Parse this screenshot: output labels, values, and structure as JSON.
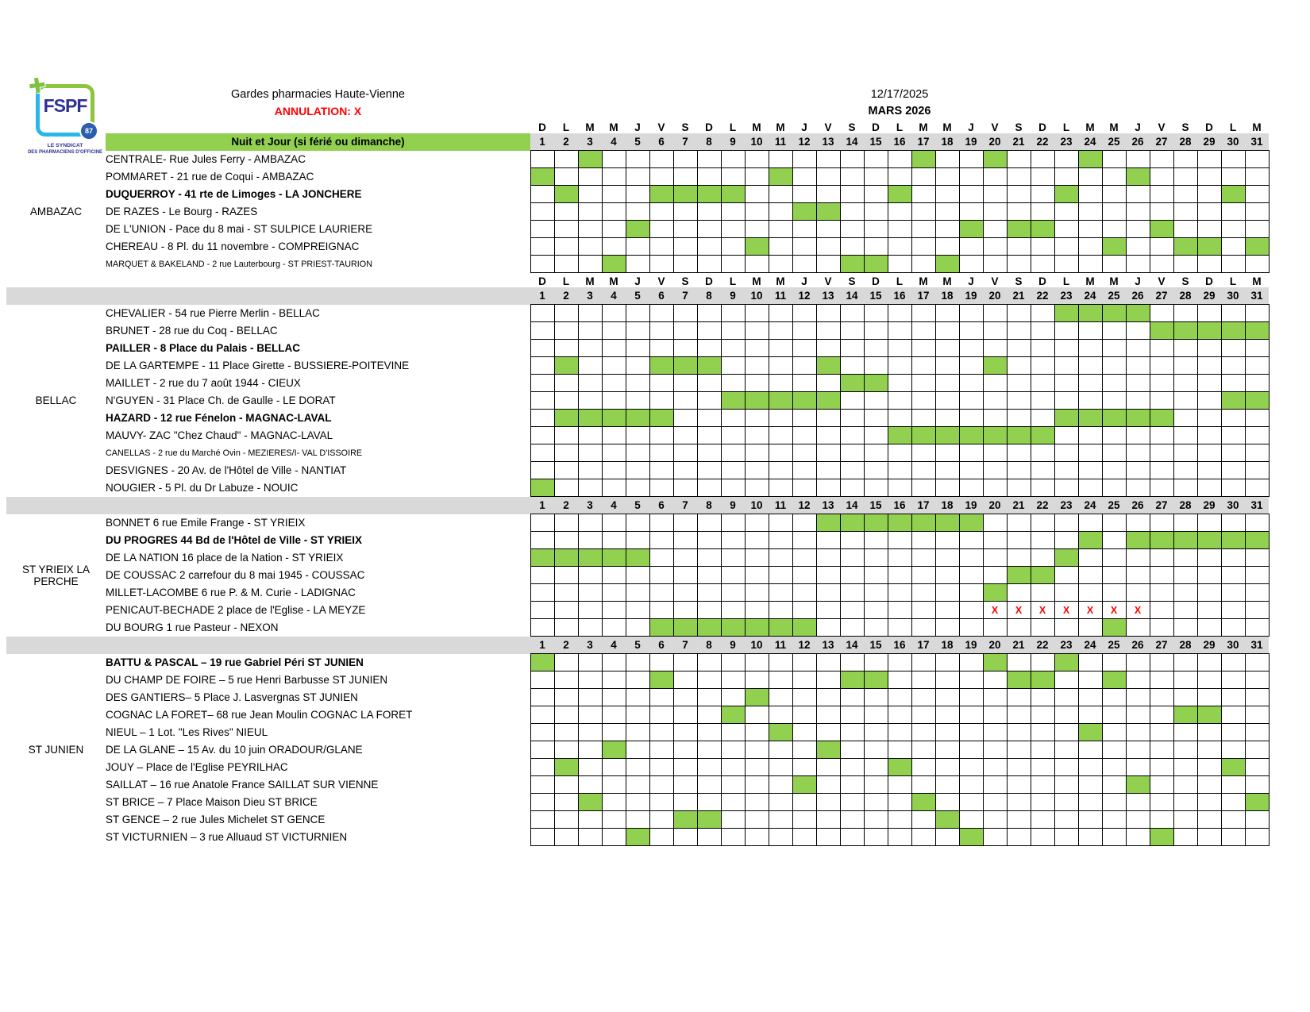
{
  "header": {
    "title": "Gardes pharmacies Haute-Vienne",
    "annulation": "ANNULATION: X",
    "banner": "Nuit et Jour (si férié ou dimanche)",
    "generated_date": "12/17/2025",
    "month": "MARS 2026",
    "logo": {
      "acronym": "FSPF",
      "badge": "87",
      "caption_line1": "LE SYNDICAT",
      "caption_line2": "DES PHARMACIENS D'OFFICINE"
    }
  },
  "symbols": {
    "x": "X"
  },
  "colors": {
    "duty_green": "#92d050",
    "band_gray": "#d9d9d9",
    "cancel_red": "#ff0000"
  },
  "calendar": {
    "day_letters": [
      "D",
      "L",
      "M",
      "M",
      "J",
      "V",
      "S",
      "D",
      "L",
      "M",
      "M",
      "J",
      "V",
      "S",
      "D",
      "L",
      "M",
      "M",
      "J",
      "V",
      "S",
      "D",
      "L",
      "M",
      "M",
      "J",
      "V",
      "S",
      "D",
      "L",
      "M"
    ],
    "dates": [
      1,
      2,
      3,
      4,
      5,
      6,
      7,
      8,
      9,
      10,
      11,
      12,
      13,
      14,
      15,
      16,
      17,
      18,
      19,
      20,
      21,
      22,
      23,
      24,
      25,
      26,
      27,
      28,
      29,
      30,
      31
    ]
  },
  "groups": [
    {
      "name": "AMBAZAC",
      "show_day_letters": true,
      "full_gray_band": false,
      "rows": [
        {
          "label": "CENTRALE- Rue Jules Ferry - AMBAZAC",
          "green": [
            3,
            17,
            20,
            24
          ]
        },
        {
          "label": "POMMARET - 21 rue de Coqui  - AMBAZAC",
          "green": [
            1,
            11,
            26
          ]
        },
        {
          "label": "DUQUERROY - 41 rte de Limoges - LA JONCHERE",
          "bold": true,
          "green": [
            2,
            6,
            7,
            8,
            9,
            16,
            23,
            30
          ]
        },
        {
          "label": "DE RAZES - Le Bourg - RAZES",
          "green": [
            12,
            13
          ]
        },
        {
          "label": "DE L'UNION - Pace du 8 mai - ST SULPICE LAURIERE",
          "green": [
            5,
            19,
            21,
            22,
            27
          ]
        },
        {
          "label": "CHEREAU - 8 Pl. du 11 novembre - COMPREIGNAC",
          "green": [
            10,
            25,
            28,
            29,
            31
          ]
        },
        {
          "label": "MARQUET & BAKELAND - 2 rue Lauterbourg - ST PRIEST-TAURION",
          "small": true,
          "green": [
            4,
            14,
            15,
            18
          ]
        }
      ]
    },
    {
      "name": "BELLAC",
      "show_day_letters": true,
      "full_gray_band": true,
      "rows": [
        {
          "label": "CHEVALIER - 54 rue Pierre Merlin - BELLAC",
          "green": [
            23,
            24,
            25,
            26
          ]
        },
        {
          "label": "BRUNET - 28 rue du Coq - BELLAC",
          "green": [
            27,
            28,
            29,
            30,
            31
          ]
        },
        {
          "label": "PAILLER - 8 Place du Palais - BELLAC",
          "bold": true,
          "green": []
        },
        {
          "label": "DE LA GARTEMPE - 11 Place Girette - BUSSIERE-POITEVINE",
          "green": [
            2,
            6,
            7,
            8,
            13,
            20
          ]
        },
        {
          "label": "MAILLET - 2 rue du 7 août 1944 - CIEUX",
          "green": [
            14,
            15
          ]
        },
        {
          "label": "N'GUYEN - 31 Place Ch. de Gaulle - LE DORAT",
          "green": [
            9,
            10,
            11,
            12,
            13,
            30,
            31
          ]
        },
        {
          "label": "HAZARD - 12 rue Fénelon - MAGNAC-LAVAL",
          "bold": true,
          "green": [
            2,
            3,
            4,
            5,
            6,
            23,
            24,
            25,
            26,
            27
          ]
        },
        {
          "label": "MAUVY- ZAC \"Chez Chaud\" - MAGNAC-LAVAL",
          "green": [
            16,
            17,
            18,
            19,
            20,
            21,
            22
          ]
        },
        {
          "label": "CANELLAS - 2 rue du Marché Ovin - MEZIERES/I- VAL D'ISSOIRE",
          "small": true,
          "green": []
        },
        {
          "label": "DESVIGNES - 20 Av. de l'Hôtel de Ville - NANTIAT",
          "green": []
        },
        {
          "label": "NOUGIER - 5 Pl. du Dr Labuze - NOUIC",
          "green": [
            1
          ]
        }
      ]
    },
    {
      "name": "ST YRIEIX LA PERCHE",
      "show_day_letters": false,
      "full_gray_band": true,
      "rows": [
        {
          "label": "BONNET  6 rue Emile Frange - ST YRIEIX",
          "green": [
            13,
            14,
            15,
            16,
            17,
            18,
            19
          ]
        },
        {
          "label": "DU PROGRES  44 Bd de l'Hôtel de Ville - ST YRIEIX",
          "bold": true,
          "green": [
            24,
            26,
            27,
            28,
            29,
            30,
            31
          ]
        },
        {
          "label": "DE LA NATION  16 place de la Nation  - ST YRIEIX",
          "green": [
            1,
            2,
            3,
            4,
            5,
            23
          ]
        },
        {
          "label": "DE COUSSAC  2 carrefour du 8 mai  1945 - COUSSAC",
          "green": [
            21,
            22
          ]
        },
        {
          "label": "MILLET-LACOMBE 6 rue P. & M. Curie - LADIGNAC",
          "green": [
            20
          ]
        },
        {
          "label": "PENICAUT-BECHADE  2 place de l'Eglise - LA MEYZE",
          "green": [],
          "x": [
            20,
            21,
            22,
            23,
            24,
            25,
            26
          ]
        },
        {
          "label": "DU BOURG  1 rue Pasteur - NEXON",
          "green": [
            6,
            7,
            8,
            9,
            10,
            11,
            12,
            25
          ]
        }
      ]
    },
    {
      "name": "ST JUNIEN",
      "show_day_letters": false,
      "full_gray_band": true,
      "rows": [
        {
          "label": "BATTU & PASCAL – 19 rue Gabriel Péri ST JUNIEN",
          "bold": true,
          "green": [
            1,
            20,
            23
          ]
        },
        {
          "label": "DU CHAMP DE FOIRE – 5 rue Henri Barbusse ST JUNIEN",
          "green": [
            6,
            14,
            15,
            21,
            22,
            25
          ]
        },
        {
          "label": "DES GANTIERS– 5 Place J. Lasvergnas ST JUNIEN",
          "green": [
            10
          ]
        },
        {
          "label": "COGNAC LA FORET– 68 rue Jean Moulin COGNAC LA FORET",
          "green": [
            9,
            28,
            29
          ]
        },
        {
          "label": "NIEUL – 1 Lot. \"Les Rives\" NIEUL",
          "green": [
            11,
            24
          ]
        },
        {
          "label": "DE LA GLANE – 15 Av. du 10 juin ORADOUR/GLANE",
          "green": [
            4,
            13
          ]
        },
        {
          "label": "JOUY – Place de l'Eglise  PEYRILHAC",
          "green": [
            2,
            16,
            30
          ]
        },
        {
          "label": "SAILLAT – 16 rue Anatole France SAILLAT SUR VIENNE",
          "green": [
            12,
            26
          ]
        },
        {
          "label": "ST BRICE  – 7 Place Maison Dieu ST BRICE",
          "green": [
            3,
            17,
            31
          ]
        },
        {
          "label": "ST GENCE – 2 rue Jules Michelet ST GENCE",
          "green": [
            7,
            8,
            18
          ]
        },
        {
          "label": "ST VICTURNIEN  – 3 rue Alluaud  ST VICTURNIEN",
          "green": [
            5,
            19,
            27
          ]
        }
      ]
    }
  ]
}
